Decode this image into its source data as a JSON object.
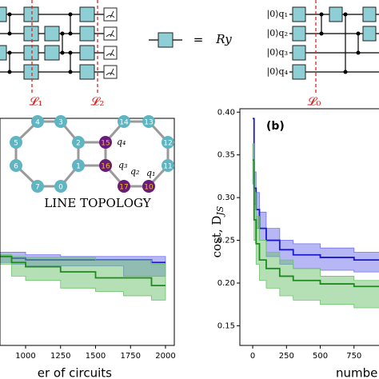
{
  "circuits": {
    "left_labels": [
      "𝓛₁",
      "𝓛₂"
    ],
    "equals": "=",
    "gate": "Ry",
    "right_qubits": [
      "|0⟩q₁",
      "|0⟩q₂",
      "|0⟩q₃",
      "|0⟩q₄"
    ],
    "right_label": "𝓛₀"
  },
  "inset": {
    "title": "LINE TOPOLOGY",
    "nodes": [
      "0",
      "1",
      "2",
      "3",
      "4",
      "5",
      "6",
      "7",
      "10",
      "11",
      "12",
      "13",
      "14",
      "15",
      "16",
      "17"
    ],
    "qubits": [
      "q₁",
      "q₂",
      "q₃",
      "q₄"
    ]
  },
  "chart_data": [
    {
      "type": "line",
      "xlabel": "er of circuits",
      "x": [
        817,
        900,
        1000,
        1250,
        1500,
        1700,
        1900,
        2000
      ],
      "xlim": [
        817,
        2063
      ],
      "ylim": [
        0.127,
        0.3925
      ],
      "xticks": [
        1000,
        1250,
        1500,
        1750,
        2000
      ],
      "series": [
        {
          "color": "#1a1acc",
          "band_color": "#7070ee",
          "values": [
            0.231,
            0.229,
            0.227,
            0.227,
            0.227,
            0.227,
            0.224,
            0.224
          ],
          "upper": [
            0.236,
            0.236,
            0.233,
            0.231,
            0.231,
            0.231,
            0.231,
            0.231
          ],
          "lower": [
            0.224,
            0.222,
            0.22,
            0.22,
            0.22,
            0.208,
            0.208,
            0.208
          ]
        },
        {
          "color": "#1f8a1f",
          "band_color": "#6cc26c",
          "values": [
            0.231,
            0.224,
            0.219,
            0.213,
            0.206,
            0.206,
            0.197,
            0.197
          ],
          "upper": [
            0.233,
            0.231,
            0.23,
            0.23,
            0.227,
            0.227,
            0.222,
            0.222
          ],
          "lower": [
            0.222,
            0.208,
            0.203,
            0.194,
            0.19,
            0.185,
            0.18,
            0.18
          ]
        }
      ]
    },
    {
      "type": "line",
      "title": "(b)",
      "ylabel": "cost, D",
      "ylabel_sub": "JS",
      "xlabel": "numbe",
      "x": [
        0,
        10,
        25,
        50,
        100,
        200,
        300,
        500,
        750,
        950
      ],
      "xlim": [
        -95,
        1000
      ],
      "ylim": [
        0.127,
        0.404
      ],
      "xticks": [
        0,
        250,
        500,
        750
      ],
      "yticks": [
        {
          "value": 0.4,
          "label": "0.40"
        },
        {
          "value": 0.35,
          "label": "0.35"
        },
        {
          "value": 0.3,
          "label": "0.30"
        },
        {
          "value": 0.25,
          "label": "0.25"
        },
        {
          "value": 0.2,
          "label": "0.20"
        },
        {
          "value": 0.15,
          "label": "0.15"
        }
      ],
      "series": [
        {
          "color": "#1a1acc",
          "band_color": "#7070ee",
          "values": [
            0.3925,
            0.311,
            0.286,
            0.264,
            0.25,
            0.239,
            0.233,
            0.23,
            0.227,
            0.227
          ],
          "upper": [
            0.3925,
            0.33,
            0.306,
            0.283,
            0.264,
            0.25,
            0.246,
            0.241,
            0.236,
            0.236
          ],
          "lower": [
            0.3925,
            0.292,
            0.264,
            0.25,
            0.231,
            0.222,
            0.217,
            0.215,
            0.213,
            0.213
          ]
        },
        {
          "color": "#1f8a1f",
          "band_color": "#6cc26c",
          "values": [
            0.344,
            0.274,
            0.246,
            0.227,
            0.217,
            0.208,
            0.203,
            0.199,
            0.196,
            0.196
          ],
          "upper": [
            0.363,
            0.306,
            0.278,
            0.25,
            0.236,
            0.227,
            0.217,
            0.208,
            0.203,
            0.203
          ],
          "lower": [
            0.316,
            0.25,
            0.222,
            0.203,
            0.194,
            0.185,
            0.18,
            0.175,
            0.171,
            0.171
          ]
        }
      ]
    }
  ]
}
